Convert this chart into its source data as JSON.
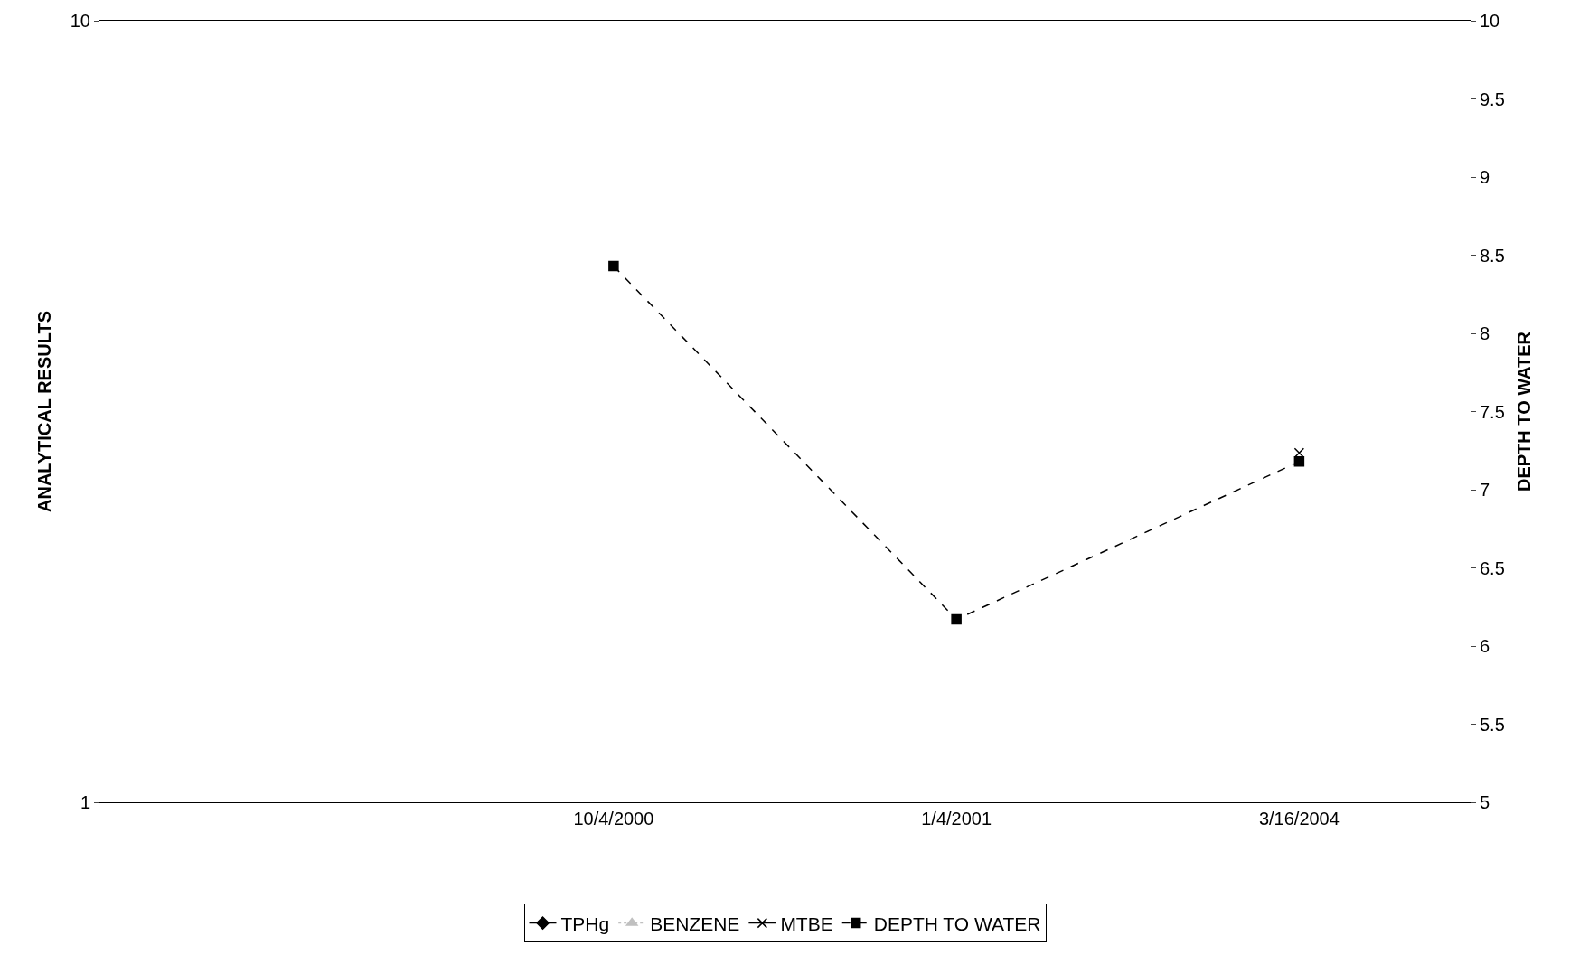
{
  "chart_data": {
    "type": "line",
    "ylabel": "ANALYTICAL RESULTS",
    "y2label": "DEPTH TO WATER",
    "categories": [
      null,
      "10/4/2000",
      "1/4/2001",
      "3/16/2004"
    ],
    "series": [
      {
        "name": "TPHg",
        "color": "#000000",
        "values": [
          null,
          null,
          null,
          null
        ],
        "marker": "diamond",
        "line_style": "solid"
      },
      {
        "name": "BENZENE",
        "color": "#c0c0c0",
        "values": [
          null,
          null,
          null,
          null
        ],
        "marker": "triangle",
        "line_style": "dotted"
      },
      {
        "name": "MTBE",
        "color": "#000000",
        "values": [
          null,
          null,
          null,
          2.8
        ],
        "marker": "cross",
        "line_style": "solid"
      },
      {
        "name": "DEPTH TO WATER",
        "color": "#000000",
        "values": [
          null,
          8.43,
          6.17,
          7.18
        ],
        "marker": "square",
        "line_style": "dashed",
        "axis": "y2"
      }
    ],
    "log": "y",
    "ylim": [
      1,
      10
    ],
    "yticks": [
      1,
      10
    ],
    "y2lim": [
      5,
      10
    ],
    "y2ticks": [
      5,
      5.5,
      6,
      6.5,
      7,
      7.5,
      8,
      8.5,
      9,
      9.5,
      10
    ],
    "legend": "bottom"
  }
}
